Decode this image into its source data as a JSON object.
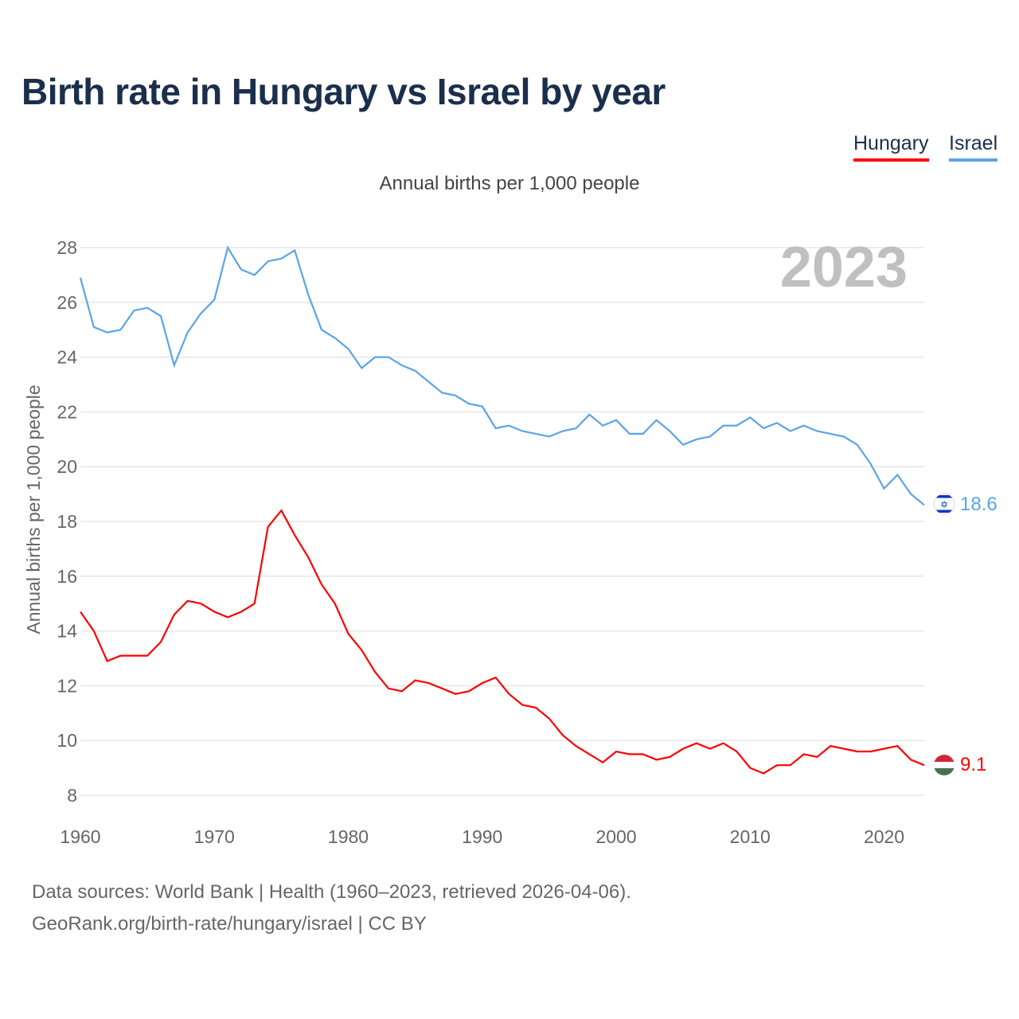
{
  "title": "Birth rate in Hungary vs Israel by year",
  "legend": [
    "Hungary",
    "Israel"
  ],
  "subtitle": "Annual births per 1,000 people",
  "year_watermark": "2023",
  "footer": {
    "line1": "Data sources: World Bank | Health (1960–2023, retrieved 2026-04-06).",
    "line2": "GeoRank.org/birth-rate/hungary/israel | CC BY"
  },
  "chart_data": {
    "type": "line",
    "title": "Birth rate in Hungary vs Israel by year",
    "xlabel": "",
    "ylabel": "Annual births per 1,000 people",
    "xlim": [
      1960,
      2023
    ],
    "ylim": [
      8,
      28
    ],
    "xticks": [
      1960,
      1970,
      1980,
      1990,
      2000,
      2010,
      2020
    ],
    "yticks": [
      8,
      10,
      12,
      14,
      16,
      18,
      20,
      22,
      24,
      26,
      28
    ],
    "grid": true,
    "legend_position": "top-right",
    "x_start": 1960,
    "series": [
      {
        "name": "Hungary",
        "color": "#ff0000",
        "end_label": "9.1",
        "values": [
          14.7,
          14.0,
          12.9,
          13.1,
          13.1,
          13.1,
          13.6,
          14.6,
          15.1,
          15.0,
          14.7,
          14.5,
          14.7,
          15.0,
          17.8,
          18.4,
          17.5,
          16.7,
          15.7,
          15.0,
          13.9,
          13.3,
          12.5,
          11.9,
          11.8,
          12.2,
          12.1,
          11.9,
          11.7,
          11.8,
          12.1,
          12.3,
          11.7,
          11.3,
          11.2,
          10.8,
          10.2,
          9.8,
          9.5,
          9.2,
          9.6,
          9.5,
          9.5,
          9.3,
          9.4,
          9.7,
          9.9,
          9.7,
          9.9,
          9.6,
          9.0,
          8.8,
          9.1,
          9.1,
          9.5,
          9.4,
          9.8,
          9.7,
          9.6,
          9.6,
          9.7,
          9.8,
          9.3,
          9.1
        ]
      },
      {
        "name": "Israel",
        "color": "#5ba4e8",
        "end_label": "18.6",
        "values": [
          26.9,
          25.1,
          24.9,
          25.0,
          25.7,
          25.8,
          25.5,
          23.7,
          24.9,
          25.6,
          26.1,
          28.0,
          27.2,
          27.0,
          27.5,
          27.6,
          27.9,
          26.3,
          25.0,
          24.7,
          24.3,
          23.6,
          24.0,
          24.0,
          23.7,
          23.5,
          23.1,
          22.7,
          22.6,
          22.3,
          22.2,
          21.4,
          21.5,
          21.3,
          21.2,
          21.1,
          21.3,
          21.4,
          21.9,
          21.5,
          21.7,
          21.2,
          21.2,
          21.7,
          21.3,
          20.8,
          21.0,
          21.1,
          21.5,
          21.5,
          21.8,
          21.4,
          21.6,
          21.3,
          21.5,
          21.3,
          21.2,
          21.1,
          20.8,
          20.1,
          19.2,
          19.7,
          19.0,
          18.6
        ]
      }
    ]
  }
}
